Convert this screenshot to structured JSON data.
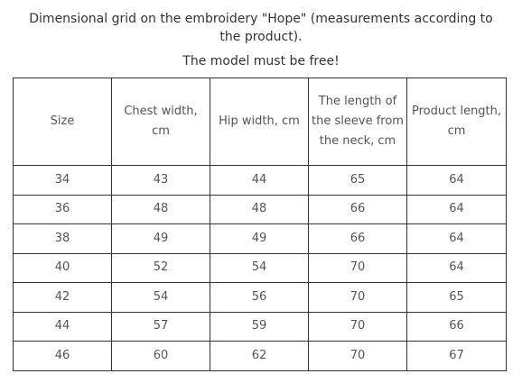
{
  "intro_text": "Dimensional grid on the embroidery \"Hope\" (measurements according to the product).",
  "note_text": "The model must be free!",
  "table": {
    "headers": [
      "Size",
      "Chest width, cm",
      "Hip width, cm",
      "The length of the sleeve from the neck, cm",
      "Product length, cm"
    ],
    "rows": [
      [
        "34",
        "43",
        "44",
        "65",
        "64"
      ],
      [
        "36",
        "48",
        "48",
        "66",
        "64"
      ],
      [
        "38",
        "49",
        "49",
        "66",
        "64"
      ],
      [
        "40",
        "52",
        "54",
        "70",
        "64"
      ],
      [
        "42",
        "54",
        "56",
        "70",
        "65"
      ],
      [
        "44",
        "57",
        "59",
        "70",
        "66"
      ],
      [
        "46",
        "60",
        "62",
        "70",
        "67"
      ]
    ]
  }
}
